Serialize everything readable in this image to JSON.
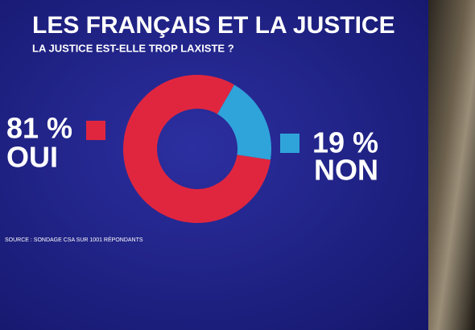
{
  "chart_data": {
    "type": "pie",
    "title": "LES FRANÇAIS ET LA JUSTICE",
    "subtitle": "LA JUSTICE EST-ELLE TROP LAXISTE ?",
    "categories": [
      "OUI",
      "NON"
    ],
    "values": [
      81,
      19
    ],
    "value_labels": [
      "81 %",
      "19 %"
    ],
    "colors": [
      "#e0263f",
      "#2fa4da"
    ],
    "source": "SOURCE : SONDAGE CSA SUR 1001 RÉPONDANTS"
  }
}
